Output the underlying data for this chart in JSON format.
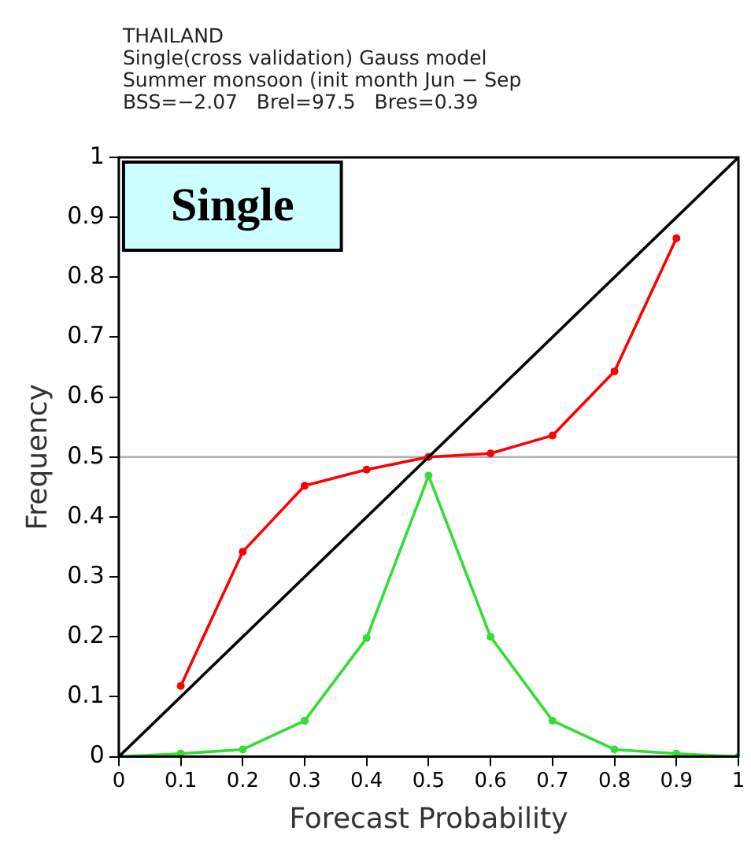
{
  "chart_data": {
    "type": "line",
    "title": "THAILAND",
    "subtitle": "Single(cross validation) Gauss model\nSummer monsoon (init month Jun − Sep\nBSS=−2.07   Brel=97.5   Bres=0.39",
    "xlabel": "Forecast Probability",
    "ylabel": "Frequency",
    "annotations": [
      "Single"
    ],
    "series": [
      {
        "color": "#000000",
        "x": [
          0,
          1
        ],
        "values": [
          0,
          1
        ],
        "marker": "none"
      },
      {
        "color": "#ff0000",
        "x": [
          0.1,
          0.2,
          0.3,
          0.4,
          0.5,
          0.6,
          0.7,
          0.8,
          0.9
        ],
        "values": [
          0.118,
          0.342,
          0.452,
          0.479,
          0.5,
          0.506,
          0.536,
          0.643,
          0.865
        ]
      },
      {
        "color": "#33dd33",
        "x": [
          0,
          0.1,
          0.2,
          0.3,
          0.4,
          0.5,
          0.6,
          0.7,
          0.8,
          0.9,
          1
        ],
        "values": [
          0,
          0.005,
          0.012,
          0.06,
          0.198,
          0.469,
          0.2,
          0.06,
          0.012,
          0.005,
          0
        ]
      }
    ],
    "ref_lines": [
      {
        "axis": "y",
        "value": 0.5,
        "color": "#b0b0b0"
      }
    ],
    "xlim": [
      0,
      1
    ],
    "xticks": [
      0,
      0.1,
      0.2,
      0.3,
      0.4,
      0.5,
      0.6,
      0.7,
      0.8,
      0.9,
      1
    ],
    "ylim": [
      0,
      1
    ],
    "yticks": [
      0,
      0.1,
      0.2,
      0.3,
      0.4,
      0.5,
      0.6,
      0.7,
      0.8,
      0.9,
      1
    ],
    "grid": false,
    "legend": false,
    "marker": "circle",
    "line_style": "solid"
  }
}
